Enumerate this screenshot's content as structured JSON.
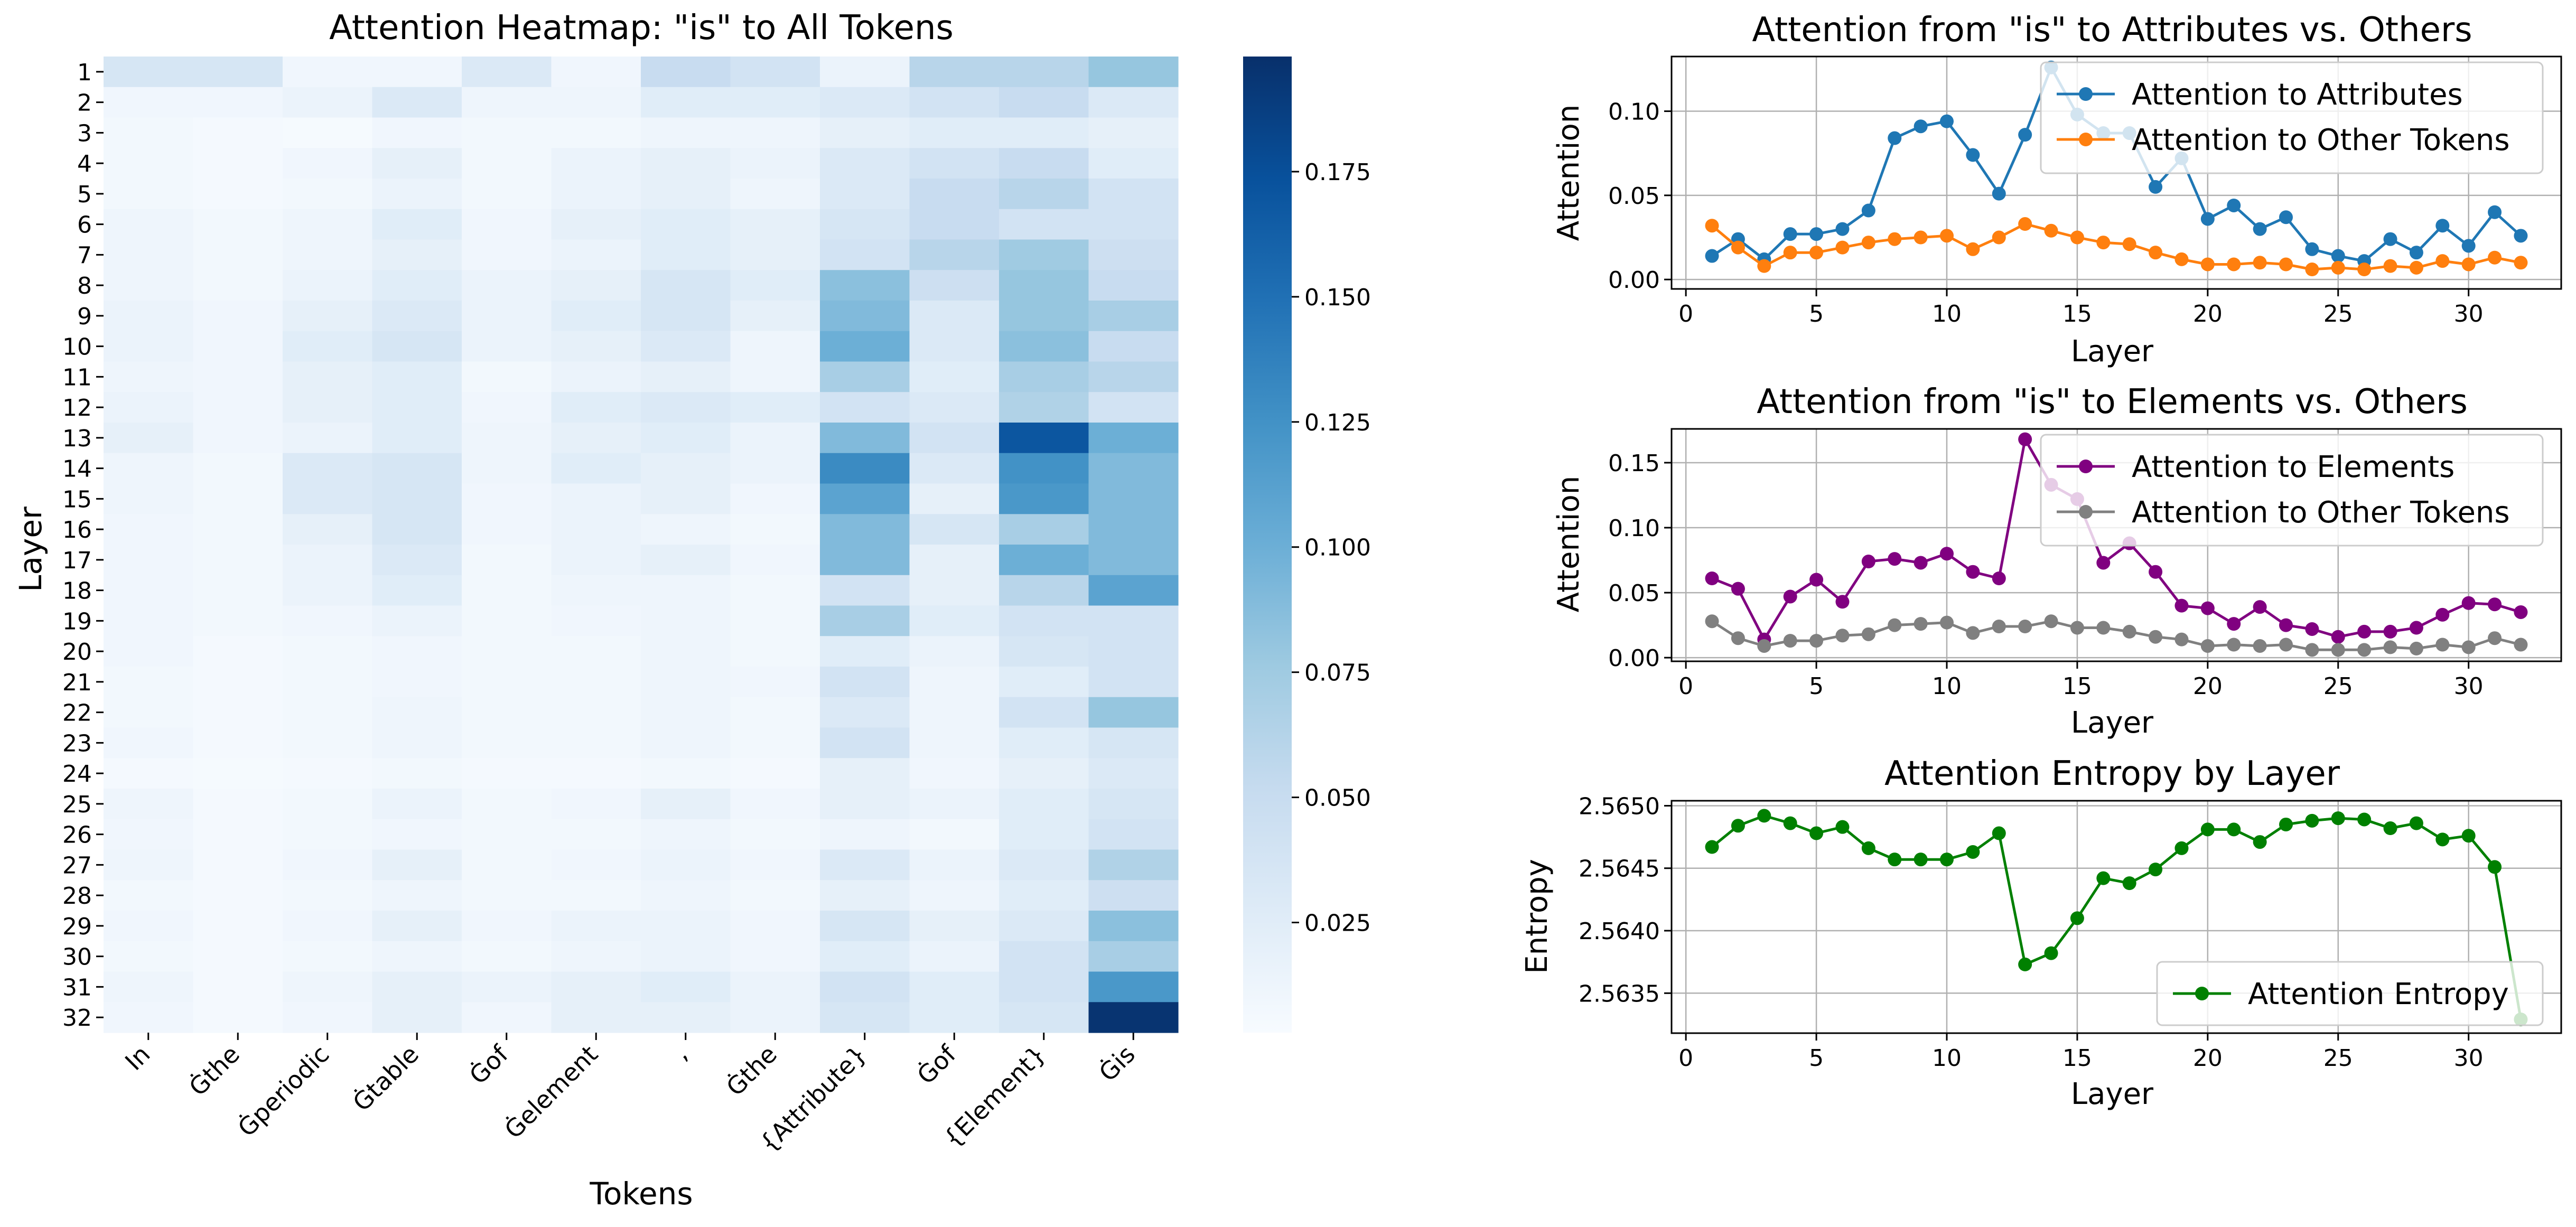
{
  "chart_data": [
    {
      "type": "heatmap",
      "title": "Attention Heatmap: \"is\" to All Tokens",
      "xlabel": "Tokens",
      "ylabel": "Layer",
      "colormap": "Blues",
      "colorbar": {
        "range": [
          0.003,
          0.198
        ],
        "ticks": [
          0.025,
          0.05,
          0.075,
          0.1,
          0.125,
          0.15,
          0.175
        ],
        "tick_labels": [
          "0.025",
          "0.050",
          "0.075",
          "0.100",
          "0.125",
          "0.150",
          "0.175"
        ]
      },
      "x_tokens": [
        "In",
        "Ġthe",
        "Ġperiodic",
        "Ġtable",
        "Ġof",
        "Ġelement",
        ",",
        "Ġthe",
        "{Attribute}",
        "Ġof",
        "{Element}",
        "Ġis"
      ],
      "y_layers": [
        "1",
        "2",
        "3",
        "4",
        "5",
        "6",
        "7",
        "8",
        "9",
        "10",
        "11",
        "12",
        "13",
        "14",
        "15",
        "16",
        "17",
        "18",
        "19",
        "20",
        "21",
        "22",
        "23",
        "24",
        "25",
        "26",
        "27",
        "28",
        "29",
        "30",
        "31",
        "32"
      ],
      "values": [
        [
          0.035,
          0.035,
          0.01,
          0.01,
          0.03,
          0.01,
          0.05,
          0.04,
          0.015,
          0.06,
          0.06,
          0.08
        ],
        [
          0.01,
          0.01,
          0.015,
          0.03,
          0.012,
          0.012,
          0.025,
          0.025,
          0.03,
          0.04,
          0.05,
          0.03
        ],
        [
          0.008,
          0.006,
          0.005,
          0.01,
          0.008,
          0.008,
          0.012,
          0.012,
          0.02,
          0.025,
          0.025,
          0.02
        ],
        [
          0.008,
          0.006,
          0.01,
          0.02,
          0.008,
          0.015,
          0.02,
          0.015,
          0.03,
          0.04,
          0.05,
          0.025
        ],
        [
          0.008,
          0.006,
          0.008,
          0.015,
          0.008,
          0.015,
          0.02,
          0.012,
          0.03,
          0.05,
          0.06,
          0.04
        ],
        [
          0.012,
          0.008,
          0.012,
          0.025,
          0.01,
          0.02,
          0.025,
          0.02,
          0.035,
          0.05,
          0.04,
          0.04
        ],
        [
          0.012,
          0.008,
          0.012,
          0.02,
          0.01,
          0.015,
          0.025,
          0.02,
          0.04,
          0.06,
          0.075,
          0.045
        ],
        [
          0.012,
          0.008,
          0.015,
          0.025,
          0.015,
          0.02,
          0.035,
          0.025,
          0.085,
          0.045,
          0.08,
          0.05
        ],
        [
          0.015,
          0.01,
          0.02,
          0.03,
          0.015,
          0.025,
          0.035,
          0.02,
          0.09,
          0.03,
          0.08,
          0.07
        ],
        [
          0.015,
          0.01,
          0.025,
          0.035,
          0.015,
          0.02,
          0.03,
          0.012,
          0.1,
          0.03,
          0.085,
          0.05
        ],
        [
          0.012,
          0.01,
          0.02,
          0.025,
          0.008,
          0.015,
          0.02,
          0.012,
          0.07,
          0.025,
          0.07,
          0.06
        ],
        [
          0.015,
          0.01,
          0.02,
          0.025,
          0.01,
          0.025,
          0.03,
          0.025,
          0.04,
          0.03,
          0.065,
          0.04
        ],
        [
          0.02,
          0.01,
          0.015,
          0.025,
          0.012,
          0.02,
          0.025,
          0.015,
          0.09,
          0.04,
          0.17,
          0.1
        ],
        [
          0.012,
          0.008,
          0.03,
          0.035,
          0.012,
          0.025,
          0.02,
          0.015,
          0.13,
          0.03,
          0.125,
          0.09
        ],
        [
          0.012,
          0.008,
          0.03,
          0.035,
          0.01,
          0.015,
          0.02,
          0.01,
          0.11,
          0.02,
          0.12,
          0.09
        ],
        [
          0.01,
          0.008,
          0.02,
          0.035,
          0.01,
          0.015,
          0.012,
          0.008,
          0.09,
          0.035,
          0.07,
          0.09
        ],
        [
          0.01,
          0.008,
          0.015,
          0.03,
          0.008,
          0.015,
          0.02,
          0.01,
          0.09,
          0.02,
          0.1,
          0.09
        ],
        [
          0.01,
          0.008,
          0.015,
          0.025,
          0.008,
          0.012,
          0.012,
          0.008,
          0.04,
          0.02,
          0.06,
          0.11
        ],
        [
          0.01,
          0.008,
          0.01,
          0.015,
          0.008,
          0.01,
          0.012,
          0.008,
          0.07,
          0.025,
          0.04,
          0.04
        ],
        [
          0.01,
          0.006,
          0.008,
          0.01,
          0.008,
          0.008,
          0.012,
          0.008,
          0.025,
          0.015,
          0.035,
          0.04
        ],
        [
          0.008,
          0.006,
          0.008,
          0.01,
          0.008,
          0.008,
          0.012,
          0.01,
          0.04,
          0.012,
          0.025,
          0.04
        ],
        [
          0.008,
          0.006,
          0.008,
          0.012,
          0.008,
          0.008,
          0.012,
          0.008,
          0.03,
          0.012,
          0.04,
          0.08
        ],
        [
          0.01,
          0.006,
          0.008,
          0.012,
          0.008,
          0.008,
          0.012,
          0.008,
          0.04,
          0.012,
          0.025,
          0.035
        ],
        [
          0.006,
          0.005,
          0.006,
          0.008,
          0.006,
          0.006,
          0.008,
          0.006,
          0.02,
          0.01,
          0.02,
          0.03
        ],
        [
          0.012,
          0.006,
          0.008,
          0.015,
          0.008,
          0.01,
          0.02,
          0.01,
          0.02,
          0.015,
          0.025,
          0.035
        ],
        [
          0.01,
          0.006,
          0.008,
          0.01,
          0.008,
          0.008,
          0.012,
          0.008,
          0.012,
          0.008,
          0.025,
          0.04
        ],
        [
          0.012,
          0.006,
          0.01,
          0.02,
          0.008,
          0.01,
          0.015,
          0.01,
          0.03,
          0.015,
          0.03,
          0.065
        ],
        [
          0.008,
          0.006,
          0.008,
          0.012,
          0.008,
          0.008,
          0.012,
          0.008,
          0.02,
          0.012,
          0.025,
          0.045
        ],
        [
          0.01,
          0.006,
          0.01,
          0.02,
          0.01,
          0.015,
          0.015,
          0.01,
          0.035,
          0.02,
          0.03,
          0.085
        ],
        [
          0.008,
          0.006,
          0.008,
          0.012,
          0.008,
          0.012,
          0.015,
          0.01,
          0.025,
          0.015,
          0.04,
          0.07
        ],
        [
          0.012,
          0.006,
          0.012,
          0.02,
          0.015,
          0.02,
          0.025,
          0.015,
          0.04,
          0.025,
          0.04,
          0.12
        ],
        [
          0.01,
          0.006,
          0.01,
          0.02,
          0.01,
          0.02,
          0.02,
          0.015,
          0.035,
          0.025,
          0.035,
          0.195
        ]
      ]
    },
    {
      "type": "line",
      "title": "Attention from \"is\" to Attributes vs. Others",
      "xlabel": "Layer",
      "ylabel": "Attention",
      "xlim": [
        -0.55,
        33.55
      ],
      "ylim": [
        -0.0056,
        0.1325
      ],
      "x_ticks": [
        0,
        5,
        10,
        15,
        20,
        25,
        30
      ],
      "x_tick_labels": [
        "0",
        "5",
        "10",
        "15",
        "20",
        "25",
        "30"
      ],
      "y_ticks": [
        0.0,
        0.05,
        0.1
      ],
      "y_tick_labels": [
        "0.00",
        "0.05",
        "0.10"
      ],
      "grid": true,
      "legend": "upper right",
      "x": [
        1,
        2,
        3,
        4,
        5,
        6,
        7,
        8,
        9,
        10,
        11,
        12,
        13,
        14,
        15,
        16,
        17,
        18,
        19,
        20,
        21,
        22,
        23,
        24,
        25,
        26,
        27,
        28,
        29,
        30,
        31,
        32
      ],
      "series": [
        {
          "name": "Attention to Attributes",
          "color": "#1f77b4",
          "values": [
            0.014,
            0.024,
            0.012,
            0.027,
            0.027,
            0.03,
            0.041,
            0.084,
            0.091,
            0.094,
            0.074,
            0.051,
            0.086,
            0.126,
            0.098,
            0.087,
            0.087,
            0.055,
            0.072,
            0.036,
            0.044,
            0.03,
            0.037,
            0.018,
            0.014,
            0.011,
            0.024,
            0.016,
            0.032,
            0.02,
            0.04,
            0.026
          ]
        },
        {
          "name": "Attention to Other Tokens",
          "color": "#ff7f0e",
          "values": [
            0.032,
            0.019,
            0.008,
            0.016,
            0.016,
            0.019,
            0.022,
            0.024,
            0.025,
            0.026,
            0.018,
            0.025,
            0.033,
            0.029,
            0.025,
            0.022,
            0.021,
            0.016,
            0.012,
            0.009,
            0.009,
            0.01,
            0.009,
            0.006,
            0.007,
            0.006,
            0.008,
            0.007,
            0.011,
            0.009,
            0.013,
            0.01
          ]
        }
      ]
    },
    {
      "type": "line",
      "title": "Attention from \"is\" to Elements vs. Others",
      "xlabel": "Layer",
      "ylabel": "Attention",
      "xlim": [
        -0.55,
        33.55
      ],
      "ylim": [
        -0.0028,
        0.176
      ],
      "x_ticks": [
        0,
        5,
        10,
        15,
        20,
        25,
        30
      ],
      "x_tick_labels": [
        "0",
        "5",
        "10",
        "15",
        "20",
        "25",
        "30"
      ],
      "y_ticks": [
        0.0,
        0.05,
        0.1,
        0.15
      ],
      "y_tick_labels": [
        "0.00",
        "0.05",
        "0.10",
        "0.15"
      ],
      "grid": true,
      "legend": "upper right",
      "x": [
        1,
        2,
        3,
        4,
        5,
        6,
        7,
        8,
        9,
        10,
        11,
        12,
        13,
        14,
        15,
        16,
        17,
        18,
        19,
        20,
        21,
        22,
        23,
        24,
        25,
        26,
        27,
        28,
        29,
        30,
        31,
        32
      ],
      "series": [
        {
          "name": "Attention to Elements",
          "color": "#800080",
          "values": [
            0.061,
            0.053,
            0.014,
            0.047,
            0.06,
            0.043,
            0.074,
            0.076,
            0.073,
            0.08,
            0.066,
            0.061,
            0.168,
            0.133,
            0.122,
            0.073,
            0.088,
            0.066,
            0.04,
            0.038,
            0.026,
            0.039,
            0.025,
            0.022,
            0.016,
            0.02,
            0.02,
            0.023,
            0.033,
            0.042,
            0.041,
            0.035
          ]
        },
        {
          "name": "Attention to Other Tokens",
          "color": "#808080",
          "values": [
            0.028,
            0.015,
            0.009,
            0.013,
            0.013,
            0.017,
            0.018,
            0.025,
            0.026,
            0.027,
            0.019,
            0.024,
            0.024,
            0.028,
            0.023,
            0.023,
            0.02,
            0.016,
            0.014,
            0.009,
            0.01,
            0.009,
            0.01,
            0.006,
            0.006,
            0.006,
            0.008,
            0.007,
            0.01,
            0.008,
            0.015,
            0.01
          ]
        }
      ]
    },
    {
      "type": "line",
      "title": "Attention Entropy by Layer",
      "xlabel": "Layer",
      "ylabel": "Entropy",
      "xlim": [
        -0.55,
        33.55
      ],
      "ylim": [
        2.56318,
        2.56504
      ],
      "x_ticks": [
        0,
        5,
        10,
        15,
        20,
        25,
        30
      ],
      "x_tick_labels": [
        "0",
        "5",
        "10",
        "15",
        "20",
        "25",
        "30"
      ],
      "y_ticks": [
        2.5635,
        2.564,
        2.5645,
        2.565
      ],
      "y_tick_labels": [
        "2.5635",
        "2.5640",
        "2.5645",
        "2.5650"
      ],
      "grid": true,
      "legend": "lower right",
      "x": [
        1,
        2,
        3,
        4,
        5,
        6,
        7,
        8,
        9,
        10,
        11,
        12,
        13,
        14,
        15,
        16,
        17,
        18,
        19,
        20,
        21,
        22,
        23,
        24,
        25,
        26,
        27,
        28,
        29,
        30,
        31,
        32
      ],
      "series": [
        {
          "name": "Attention Entropy",
          "color": "#008000",
          "values": [
            2.56467,
            2.56484,
            2.56492,
            2.56486,
            2.56478,
            2.56483,
            2.56466,
            2.56457,
            2.56457,
            2.56457,
            2.56463,
            2.56478,
            2.56373,
            2.56382,
            2.5641,
            2.56442,
            2.56438,
            2.56449,
            2.56466,
            2.56481,
            2.56481,
            2.56471,
            2.56485,
            2.56488,
            2.5649,
            2.56489,
            2.56482,
            2.56486,
            2.56473,
            2.56476,
            2.56451,
            2.56329
          ]
        }
      ]
    }
  ]
}
